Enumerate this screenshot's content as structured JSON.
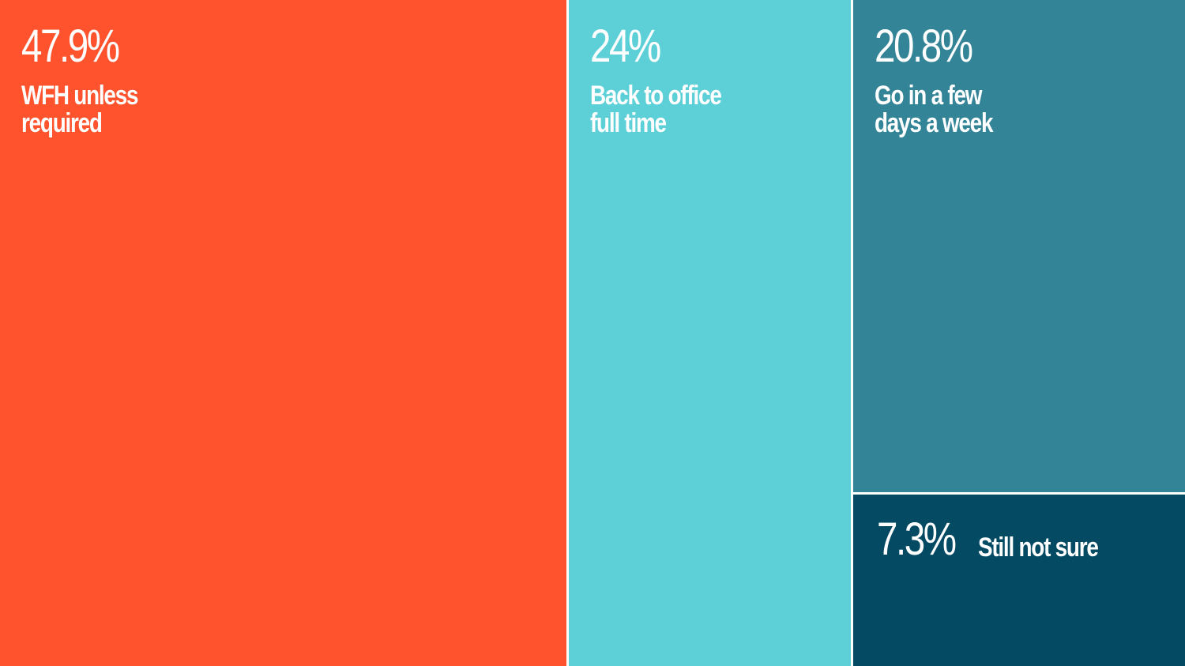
{
  "chart_data": {
    "type": "treemap",
    "items": [
      {
        "value_label": "47.9%",
        "value": 47.9,
        "label": "WFH unless\nrequired",
        "color": "#ff532e"
      },
      {
        "value_label": "24%",
        "value": 24,
        "label": "Back to office\nfull time",
        "color": "#5dd0d7"
      },
      {
        "value_label": "20.8%",
        "value": 20.8,
        "label": "Go in a few\ndays a week",
        "color": "#328496"
      },
      {
        "value_label": "7.3%",
        "value": 7.3,
        "label": "Still not sure",
        "color": "#034a62"
      }
    ]
  }
}
